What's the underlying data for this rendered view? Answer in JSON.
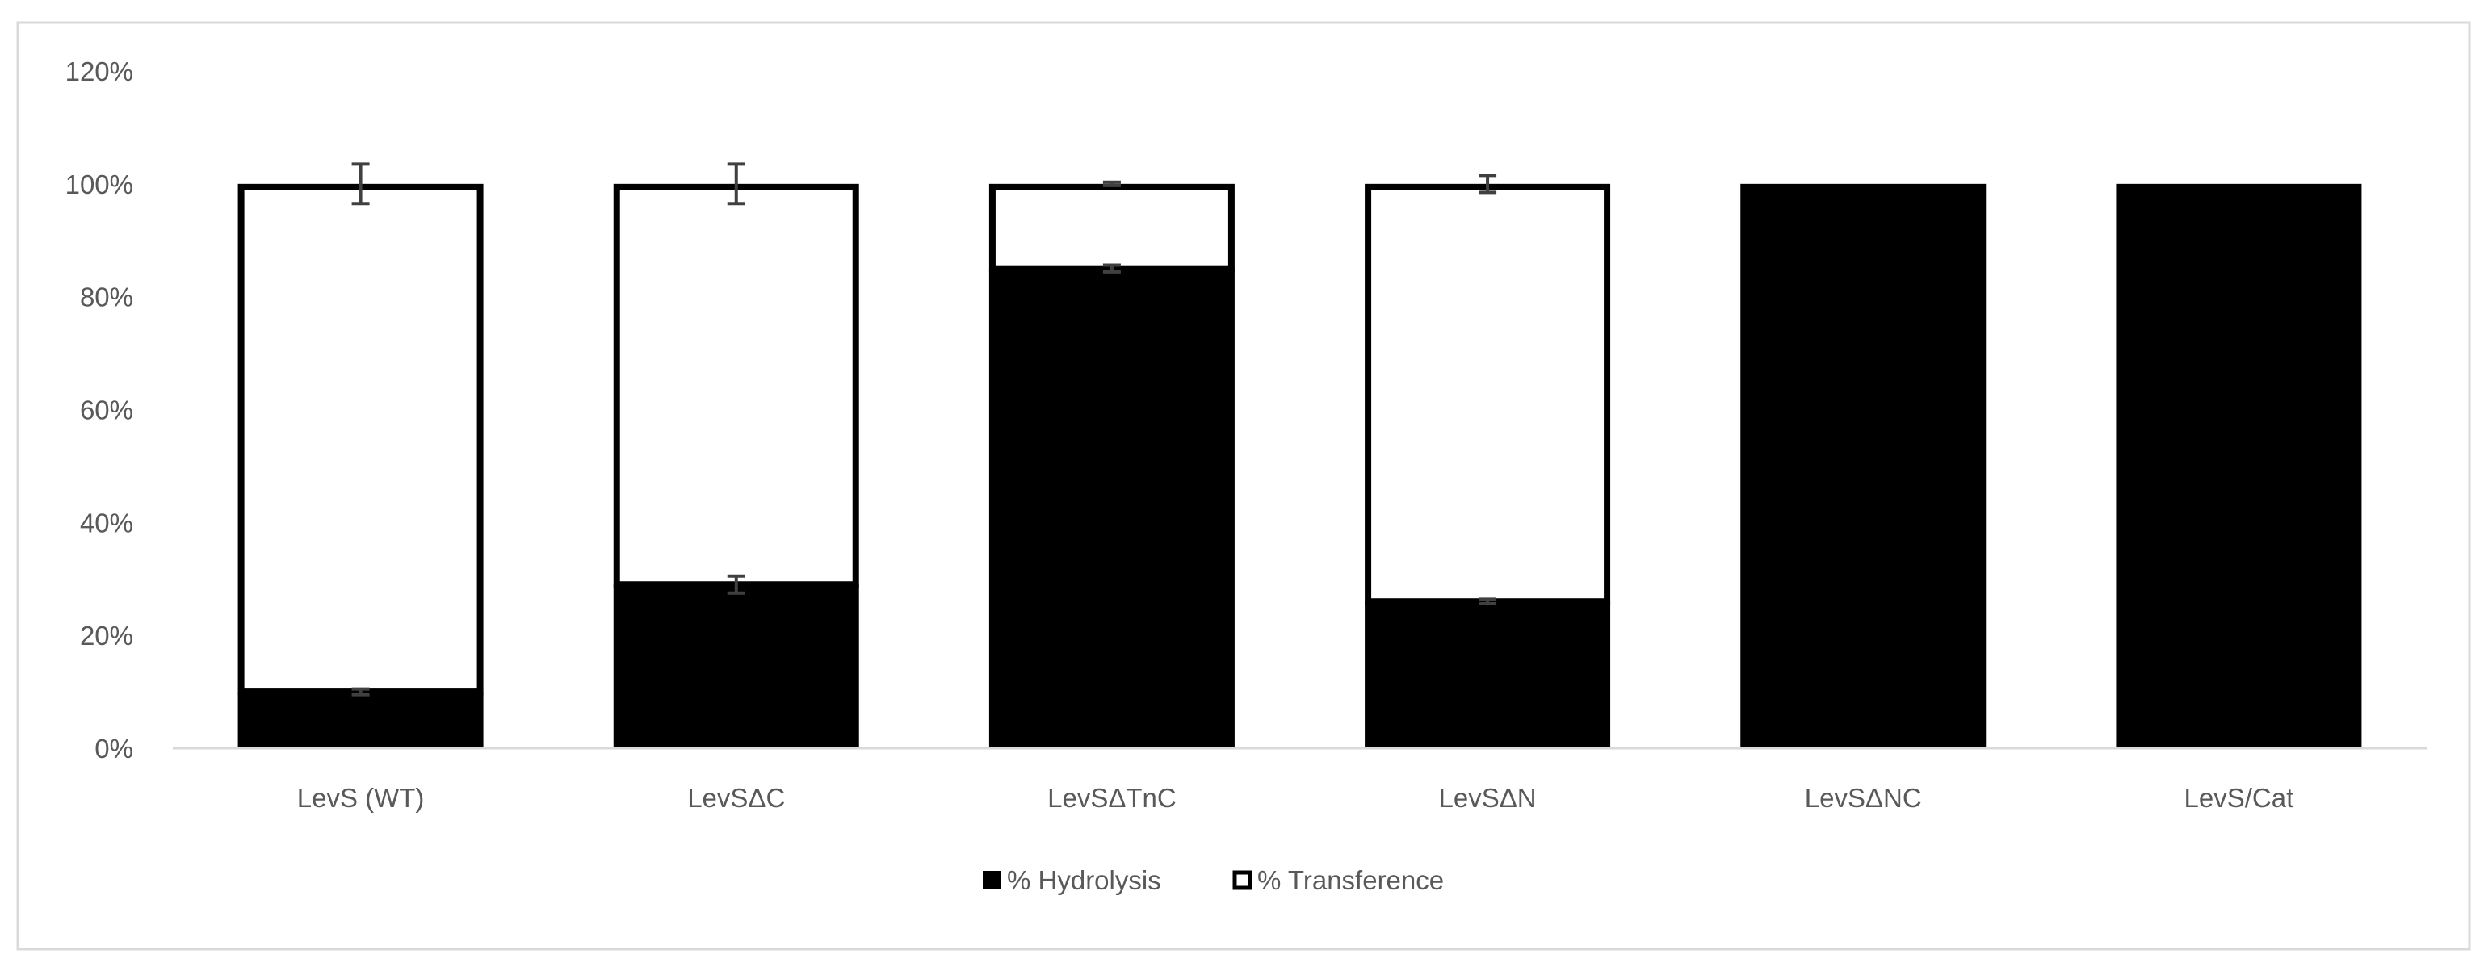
{
  "chart_data": {
    "type": "bar",
    "stacked": true,
    "categories": [
      "LevS (WT)",
      "LevSΔC",
      "LevSΔTnC",
      "LevSΔN",
      "LevSΔNC",
      "LevS/Cat"
    ],
    "series": [
      {
        "name": "% Hydrolysis",
        "color": "#000000",
        "values": [
          10,
          29,
          85,
          26,
          100,
          100
        ],
        "errors": [
          0.5,
          1.5,
          0.6,
          0.4,
          0,
          0
        ]
      },
      {
        "name": "% Transference",
        "color": "#ffffff",
        "values": [
          90,
          71,
          15,
          74,
          0,
          0
        ],
        "errors": [
          3.5,
          3.5,
          0.3,
          1.5,
          0,
          0
        ]
      }
    ],
    "y_ticks": [
      "0%",
      "20%",
      "40%",
      "60%",
      "80%",
      "100%",
      "120%"
    ],
    "ylim": [
      0,
      120
    ],
    "grid": false,
    "legend_position": "bottom",
    "title": "",
    "xlabel": "",
    "ylabel": ""
  }
}
